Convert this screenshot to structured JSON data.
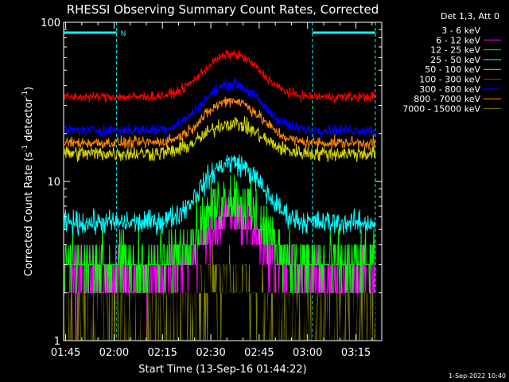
{
  "chart_data": {
    "type": "line",
    "title": "RHESSI Observing Summary Count Rates, Corrected",
    "xlabel": "Start Time (13-Sep-16 01:44:22)",
    "ylabel": "Corrected Count Rate (s",
    "ylabel_sup1": "-1",
    "ylabel_mid": " detector",
    "ylabel_sup2": "-1",
    "ylabel_end": ")",
    "y_scale": "log",
    "ylim": [
      1,
      100
    ],
    "y_ticks": [
      "1",
      "10",
      "100"
    ],
    "xlim_minutes": [
      104.37,
      203
    ],
    "x_ticks": [
      "01:45",
      "02:00",
      "02:15",
      "02:30",
      "02:45",
      "03:00",
      "03:15"
    ],
    "x_tick_minutes": [
      105,
      120,
      135,
      150,
      165,
      180,
      195
    ],
    "legend_title": "Det 1,3, Att 0",
    "legend_position": "right",
    "series": [
      {
        "name": "3 - 6 keV",
        "color": "#000000",
        "base": 1.5,
        "peak": 1.6,
        "noise": 0.35
      },
      {
        "name": "6 - 12 keV",
        "color": "#ff00ff",
        "base": 2.5,
        "peak": 2.4,
        "noise": 0.3
      },
      {
        "name": "12 - 25 keV",
        "color": "#00ff00",
        "base": 3.0,
        "peak": 2.6,
        "noise": 0.3
      },
      {
        "name": "25 - 50 keV",
        "color": "#00ffff",
        "base": 5.5,
        "peak": 2.4,
        "noise": 0.12
      },
      {
        "name": "50 - 100 keV",
        "color": "#d4d400",
        "base": 15.0,
        "peak": 1.55,
        "noise": 0.08
      },
      {
        "name": "100 - 300 keV",
        "color": "#ff0000",
        "base": 34.0,
        "peak": 1.85,
        "noise": 0.05
      },
      {
        "name": "300 - 800 keV",
        "color": "#0000ff",
        "base": 21.0,
        "peak": 1.95,
        "noise": 0.06
      },
      {
        "name": "800 - 7000 keV",
        "color": "#ff8800",
        "base": 17.5,
        "peak": 1.85,
        "noise": 0.06
      },
      {
        "name": "7000 - 15000 keV",
        "color": "#808000",
        "base": 1.4,
        "peak": 1.7,
        "noise": 0.35
      }
    ],
    "peak_time_minutes": 156.5,
    "peak_width_minutes": 11,
    "saa_intervals_minutes": [
      [
        104.37,
        120.8
      ],
      [
        181.5,
        201
      ]
    ],
    "saa_label": "N",
    "grid": false
  },
  "footer": {
    "timestamp": "1-Sep-2022 10:40"
  }
}
